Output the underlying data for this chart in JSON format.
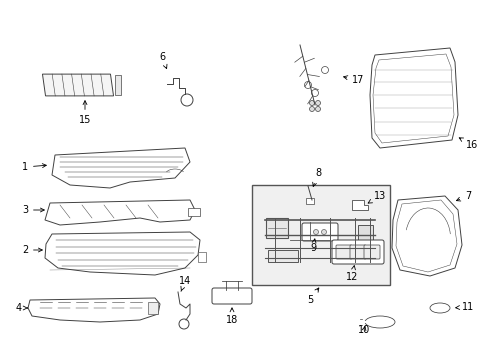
{
  "bg_color": "#ffffff",
  "line_color": "#404040",
  "label_color": "#000000",
  "fig_width": 4.9,
  "fig_height": 3.6,
  "dpi": 100,
  "lw": 0.7,
  "fontsize": 7.0
}
